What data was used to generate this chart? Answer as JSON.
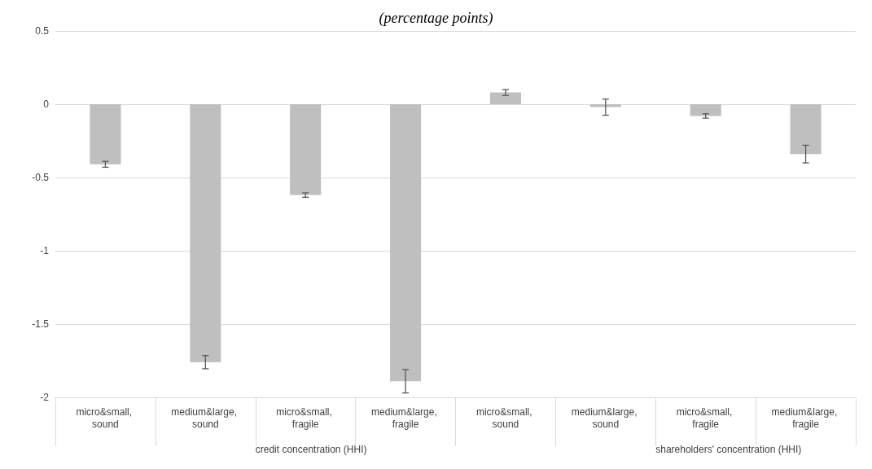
{
  "chart_data": {
    "type": "bar",
    "title": "(percentage points)",
    "categories": [
      "micro&small, sound",
      "medium&large, sound",
      "micro&small, fragile",
      "medium&large, fragile",
      "micro&small, sound",
      "medium&large, sound",
      "micro&small, fragile",
      "medium&large, fragile"
    ],
    "values": [
      -0.41,
      -1.76,
      -0.62,
      -1.89,
      0.08,
      -0.02,
      -0.08,
      -0.34
    ],
    "errors": [
      0.02,
      0.045,
      0.015,
      0.08,
      0.02,
      0.055,
      0.015,
      0.06
    ],
    "color": "#bfbfbf",
    "ylim": [
      -2,
      0.5
    ],
    "yticks": [
      -2,
      -1.5,
      -1,
      -0.5,
      0,
      0.5
    ],
    "grid": "y",
    "annotations": [
      "credit concentration (HHI)",
      "shareholders' concentration (HHI)"
    ]
  }
}
